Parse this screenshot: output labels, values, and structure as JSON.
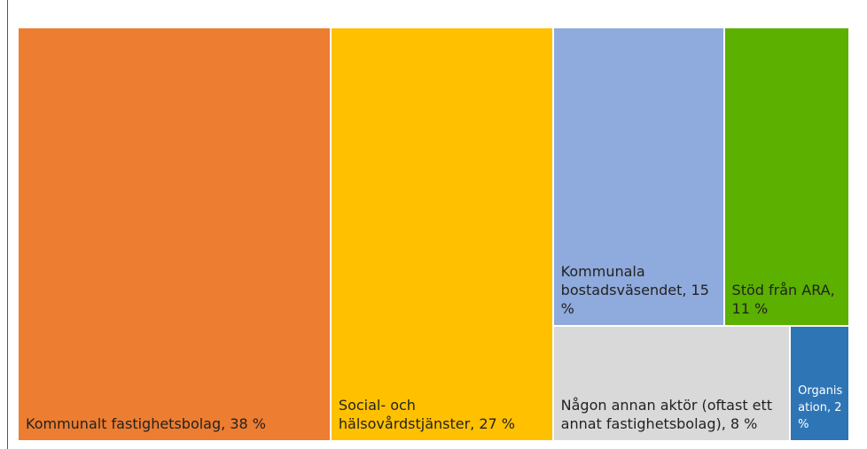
{
  "chart_data": {
    "type": "treemap",
    "values": [
      38,
      27,
      15,
      11,
      8,
      2
    ],
    "value_labels": [
      "Kommunalt fastighetsbolag, 38 %",
      "Social- och hälsovårdstjänster, 27 %",
      "Kommunala bostadsväsendet, 15 %",
      "Stöd från ARA, 11 %",
      "Någon annan aktör (oftast ett annat fastighetsbolag), 8 %",
      "Organisation, 2 %"
    ],
    "colors": [
      "#ED7D31",
      "#FFC000",
      "#8FAADC",
      "#5BB000",
      "#D9D9D9",
      "#2E75B6"
    ]
  }
}
